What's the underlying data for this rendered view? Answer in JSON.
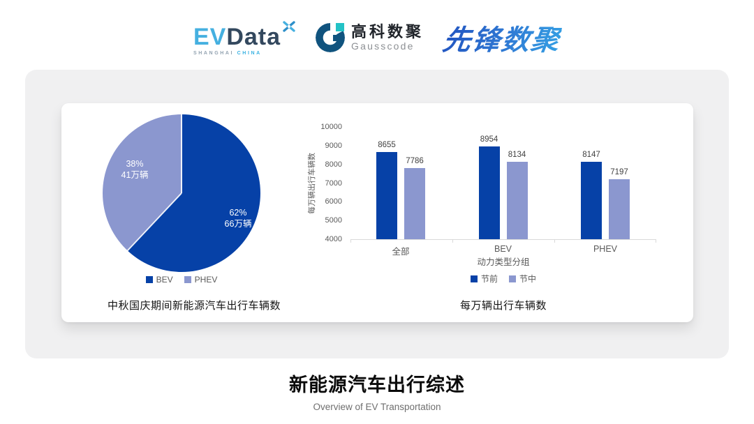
{
  "header": {
    "logos": {
      "evdata": {
        "ev": "EV",
        "data": "Data",
        "tagline_left": "SHANGHAI",
        "tagline_right": "CHINA"
      },
      "gausscode": {
        "name_cn": "高科数聚",
        "name_en": "Gausscode"
      },
      "xianfeng": {
        "name": "先锋数聚"
      }
    }
  },
  "colors": {
    "series_dark": "#0641a7",
    "series_light": "#8b97cf",
    "panel_bg": "#f0f0f1",
    "axis_line": "#d9d9d9"
  },
  "chart_data": [
    {
      "type": "pie",
      "title": "中秋国庆期间新能源汽车出行车辆数",
      "slices": [
        {
          "label": "BEV",
          "percent": 62,
          "value_text": "66万辆",
          "color": "#0641a7"
        },
        {
          "label": "PHEV",
          "percent": 38,
          "value_text": "41万辆",
          "color": "#8b97cf"
        }
      ],
      "legend_position": "bottom",
      "start_angle_deg": 0,
      "direction": "clockwise"
    },
    {
      "type": "bar",
      "title": "每万辆出行车辆数",
      "categories": [
        "全部",
        "BEV",
        "PHEV"
      ],
      "series": [
        {
          "name": "节前",
          "color": "#0641a7",
          "values": [
            8655,
            8954,
            8147
          ]
        },
        {
          "name": "节中",
          "color": "#8b97cf",
          "values": [
            7786,
            8134,
            7197
          ]
        }
      ],
      "xlabel": "动力类型分组",
      "ylabel": "每万辆出行车辆数",
      "ylim": [
        4000,
        10000
      ],
      "yticks": [
        4000,
        5000,
        6000,
        7000,
        8000,
        9000,
        10000
      ],
      "grid": false,
      "legend_position": "bottom"
    }
  ],
  "footer": {
    "title": "新能源汽车出行综述",
    "subtitle": "Overview of EV Transportation"
  }
}
